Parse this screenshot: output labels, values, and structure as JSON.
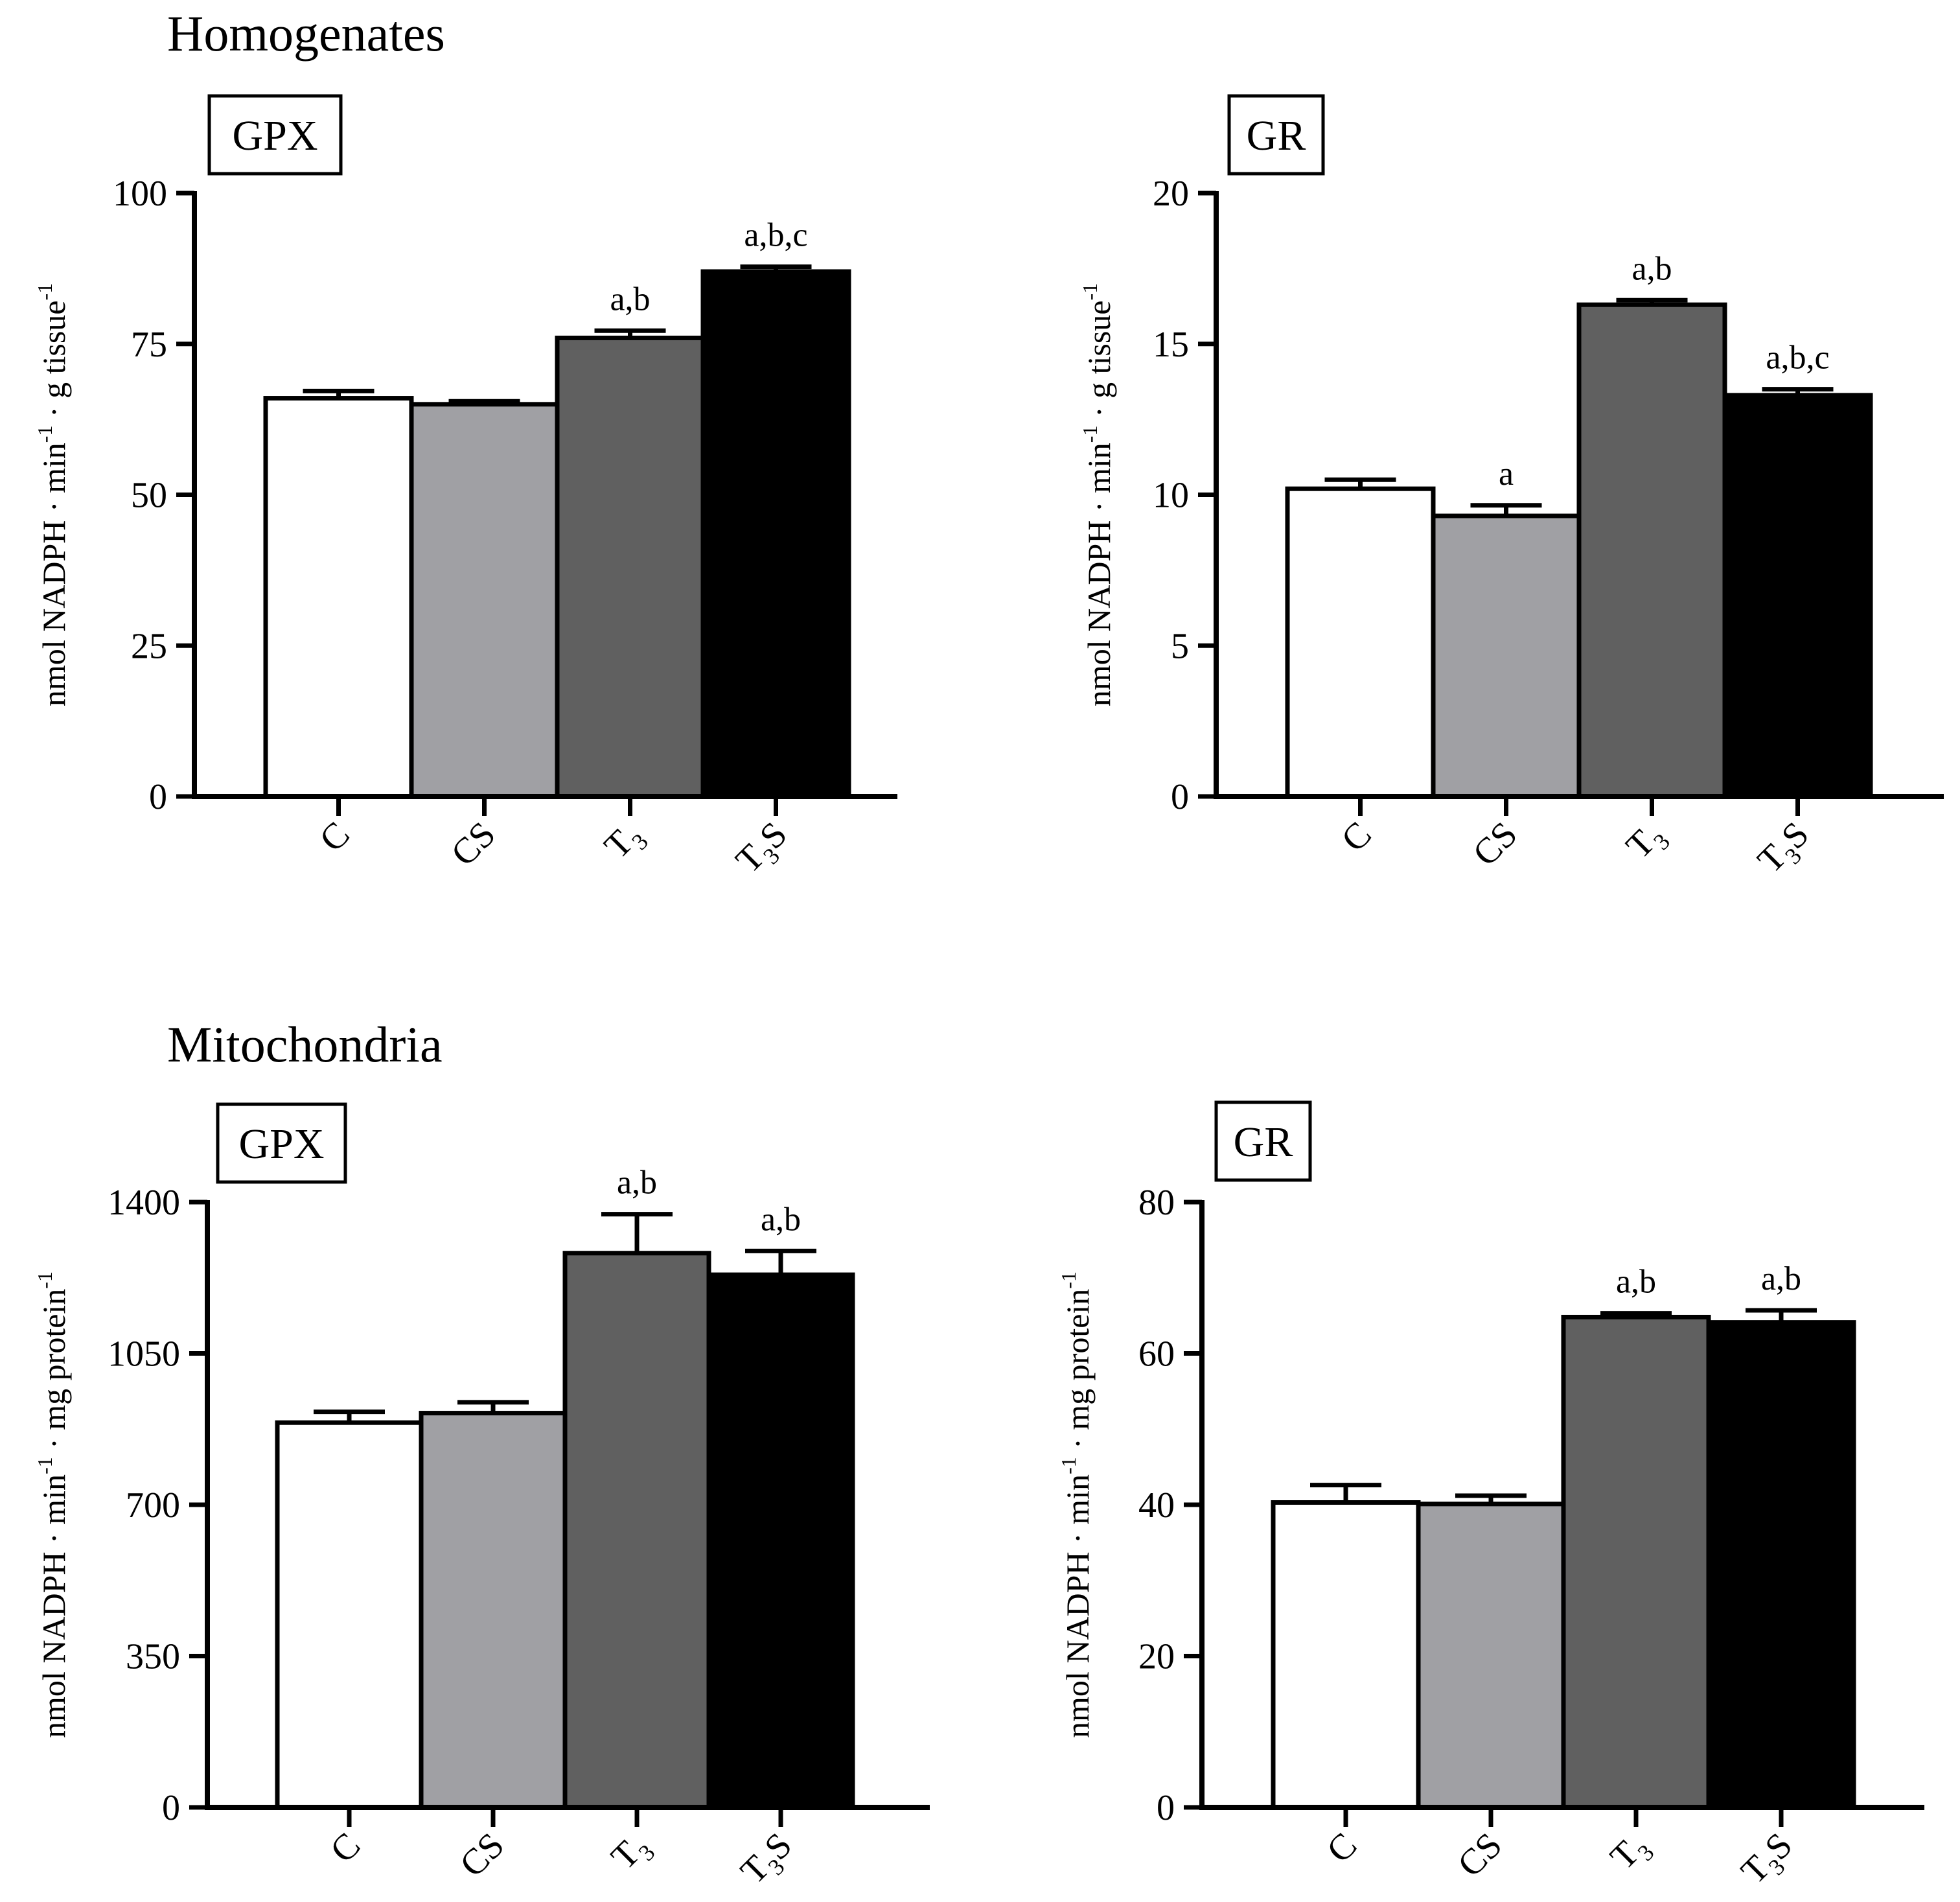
{
  "section_titles": [
    "Homogenates",
    "Mitochondria"
  ],
  "colors": {
    "C": "#ffffff",
    "CS": "#a0a0a4",
    "T3": "#606060",
    "T3S": "#000000",
    "stroke": "#000000"
  },
  "chart_data": [
    {
      "type": "bar",
      "section": "Homogenates",
      "title": "GPX",
      "categories": [
        {
          "main": "C",
          "sub": "",
          "tail": ""
        },
        {
          "main": "CS",
          "sub": "",
          "tail": ""
        },
        {
          "main": "T",
          "sub": "3",
          "tail": ""
        },
        {
          "main": "T",
          "sub": "3",
          "tail": "S"
        }
      ],
      "values": [
        66,
        65,
        76,
        87
      ],
      "errors": [
        1.2,
        0.5,
        1.2,
        0.8
      ],
      "significance": [
        "",
        "",
        "a,b",
        "a,b,c"
      ],
      "ylim": [
        0,
        100
      ],
      "yticks": [
        "0",
        "25",
        "50",
        "75",
        "100"
      ],
      "ylabel": {
        "parts": [
          "nmol NADPH · min",
          "-1",
          "· g tissue",
          "-1"
        ]
      }
    },
    {
      "type": "bar",
      "section": "Homogenates",
      "title": "GR",
      "categories": [
        {
          "main": "C",
          "sub": "",
          "tail": ""
        },
        {
          "main": "CS",
          "sub": "",
          "tail": ""
        },
        {
          "main": "T",
          "sub": "3",
          "tail": ""
        },
        {
          "main": "T",
          "sub": "3",
          "tail": "S"
        }
      ],
      "values": [
        10.2,
        9.3,
        16.3,
        13.3
      ],
      "errors": [
        0.3,
        0.35,
        0.15,
        0.2
      ],
      "significance": [
        "",
        "a",
        "a,b",
        "a,b,c"
      ],
      "ylim": [
        0,
        20
      ],
      "yticks": [
        "0",
        "5",
        "10",
        "15",
        "20"
      ],
      "ylabel": {
        "parts": [
          "nmol NADPH · min",
          "-1",
          "· g tissue",
          "-1"
        ]
      }
    },
    {
      "type": "bar",
      "section": "Mitochondria",
      "title": "GPX",
      "categories": [
        {
          "main": "C",
          "sub": "",
          "tail": ""
        },
        {
          "main": "CS",
          "sub": "",
          "tail": ""
        },
        {
          "main": "T",
          "sub": "3",
          "tail": ""
        },
        {
          "main": "T",
          "sub": "3",
          "tail": "S"
        }
      ],
      "values": [
        890,
        912,
        1282,
        1232
      ],
      "errors": [
        25,
        25,
        90,
        55
      ],
      "significance": [
        "",
        "",
        "a,b",
        "a,b"
      ],
      "ylim": [
        0,
        1400
      ],
      "yticks": [
        "0",
        "350",
        "700",
        "1050",
        "1400"
      ],
      "ylabel": {
        "parts": [
          "nmol NADPH · min",
          "-1",
          "· mg protein",
          "-1"
        ]
      }
    },
    {
      "type": "bar",
      "section": "Mitochondria",
      "title": "GR",
      "categories": [
        {
          "main": "C",
          "sub": "",
          "tail": ""
        },
        {
          "main": "CS",
          "sub": "",
          "tail": ""
        },
        {
          "main": "T",
          "sub": "3",
          "tail": ""
        },
        {
          "main": "T",
          "sub": "3",
          "tail": "S"
        }
      ],
      "values": [
        40.3,
        40.1,
        64.8,
        64.1
      ],
      "errors": [
        2.3,
        1.1,
        0.5,
        1.6
      ],
      "significance": [
        "",
        "",
        "a,b",
        "a,b"
      ],
      "ylim": [
        0,
        80
      ],
      "yticks": [
        "0",
        "20",
        "40",
        "60",
        "80"
      ],
      "ylabel": {
        "parts": [
          "nmol NADPH · min",
          "-1",
          "· mg protein",
          "-1"
        ]
      }
    }
  ]
}
